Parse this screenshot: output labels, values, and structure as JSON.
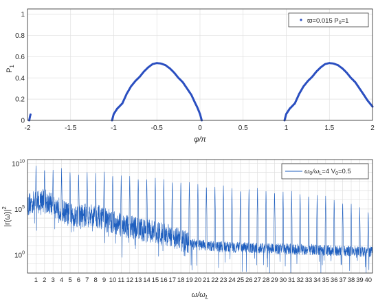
{
  "chart_data": [
    {
      "type": "scatter",
      "xlabel": "φ/π",
      "ylabel": "P",
      "ylabel_sub": "1",
      "xlim": [
        -2,
        2
      ],
      "ylim": [
        0,
        1.05
      ],
      "x_ticks": [
        -2,
        -1.5,
        -1,
        -0.5,
        0,
        0.5,
        1,
        1.5,
        2
      ],
      "y_ticks": [
        0,
        0.2,
        0.4,
        0.6,
        0.8,
        1
      ],
      "grid": true,
      "legend_position": "top-right",
      "legend": {
        "label_main": "ϖ=0.015 P",
        "label_sub": "0",
        "label_tail": "=1",
        "color": "#2b4fc0"
      },
      "series": [
        {
          "name": "ϖ=0.015 P0=1",
          "color": "#2b4fc0",
          "points": [
            [
              -1.98,
              0.0
            ],
            [
              -1.975,
              0.02
            ],
            [
              -1.97,
              0.04
            ],
            [
              -1.965,
              0.055
            ],
            [
              -1.02,
              0.0
            ],
            [
              -1.0,
              0.06
            ],
            [
              -0.96,
              0.11
            ],
            [
              -0.9,
              0.16
            ],
            [
              -0.85,
              0.25
            ],
            [
              -0.8,
              0.32
            ],
            [
              -0.75,
              0.37
            ],
            [
              -0.7,
              0.41
            ],
            [
              -0.65,
              0.46
            ],
            [
              -0.6,
              0.5
            ],
            [
              -0.55,
              0.53
            ],
            [
              -0.5,
              0.54
            ],
            [
              -0.45,
              0.535
            ],
            [
              -0.4,
              0.52
            ],
            [
              -0.35,
              0.49
            ],
            [
              -0.3,
              0.45
            ],
            [
              -0.25,
              0.4
            ],
            [
              -0.2,
              0.36
            ],
            [
              -0.15,
              0.3
            ],
            [
              -0.1,
              0.24
            ],
            [
              -0.06,
              0.17
            ],
            [
              -0.03,
              0.12
            ],
            [
              0.0,
              0.06
            ],
            [
              0.02,
              0.0
            ],
            [
              0.98,
              0.0
            ],
            [
              1.0,
              0.06
            ],
            [
              1.04,
              0.11
            ],
            [
              1.1,
              0.16
            ],
            [
              1.15,
              0.25
            ],
            [
              1.2,
              0.32
            ],
            [
              1.25,
              0.37
            ],
            [
              1.3,
              0.41
            ],
            [
              1.35,
              0.46
            ],
            [
              1.4,
              0.5
            ],
            [
              1.45,
              0.53
            ],
            [
              1.5,
              0.54
            ],
            [
              1.55,
              0.535
            ],
            [
              1.6,
              0.52
            ],
            [
              1.65,
              0.49
            ],
            [
              1.7,
              0.45
            ],
            [
              1.75,
              0.4
            ],
            [
              1.8,
              0.36
            ],
            [
              1.85,
              0.3
            ],
            [
              1.9,
              0.24
            ],
            [
              1.94,
              0.19
            ],
            [
              1.97,
              0.16
            ],
            [
              2.0,
              0.13
            ]
          ]
        }
      ]
    },
    {
      "type": "line",
      "xlabel_main": "ω/ω",
      "xlabel_sub": "L",
      "ylabel": "|r(ω)|",
      "ylabel_sup": "2",
      "y_scale": "log",
      "xlim": [
        0,
        40.5
      ],
      "ylim_log10": [
        -2,
        10.4
      ],
      "x_tick_labels": [
        "1",
        "2",
        "3",
        "4",
        "5",
        "6",
        "7",
        "8",
        "9",
        "10",
        "11",
        "12",
        "13",
        "14",
        "15",
        "16",
        "17",
        "18",
        "19",
        "20",
        "21",
        "22",
        "23",
        "24",
        "25",
        "26",
        "27",
        "28",
        "29",
        "30",
        "31",
        "32",
        "33",
        "34",
        "35",
        "36",
        "37",
        "38",
        "39",
        "40"
      ],
      "y_ticks_log10": [
        0,
        5,
        10
      ],
      "y_tick_base": "10",
      "grid": true,
      "legend_position": "top-right",
      "legend": {
        "label_a": "ω",
        "sub_a": "0",
        "label_b": "/ω",
        "sub_b": "L",
        "label_c": "=4 V",
        "sub_c": "0",
        "label_d": "=0.5",
        "color": "#1f5fbf"
      },
      "series": [
        {
          "name": "ω0/ωL=4 V0=0.5",
          "color": "#1f5fbf",
          "floor_log10": [
            [
              0,
              5.5
            ],
            [
              2,
              6.0
            ],
            [
              5,
              4.3
            ],
            [
              8,
              4.3
            ],
            [
              10,
              3.5
            ],
            [
              13,
              2.8
            ],
            [
              15,
              2.4
            ],
            [
              17,
              2.0
            ],
            [
              19,
              1.2
            ],
            [
              22,
              0.9
            ],
            [
              28,
              0.7
            ],
            [
              35,
              0.5
            ],
            [
              40,
              0.3
            ]
          ],
          "harmonic_peaks_log10": [
            10.0,
            9.7,
            9.5,
            9.5,
            9.3,
            9.2,
            9.2,
            9.0,
            9.4,
            9.0,
            8.8,
            8.7,
            8.6,
            8.6,
            8.5,
            8.4,
            8.3,
            8.2,
            8.0,
            7.9,
            7.8,
            7.7,
            7.6,
            7.5,
            7.4,
            7.4,
            7.3,
            7.2,
            7.2,
            7.1,
            7.0,
            6.9,
            6.8,
            6.7,
            6.5,
            6.3,
            6.0,
            5.7,
            5.3,
            5.0
          ]
        }
      ]
    }
  ]
}
